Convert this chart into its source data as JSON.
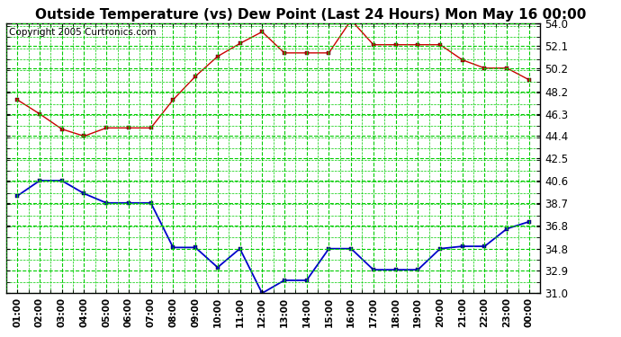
{
  "title": "Outside Temperature (vs) Dew Point (Last 24 Hours) Mon May 16 00:00",
  "copyright": "Copyright 2005 Curtronics.com",
  "x_labels": [
    "01:00",
    "02:00",
    "03:00",
    "04:00",
    "05:00",
    "06:00",
    "07:00",
    "08:00",
    "09:00",
    "10:00",
    "11:00",
    "12:00",
    "13:00",
    "14:00",
    "15:00",
    "16:00",
    "17:00",
    "18:00",
    "19:00",
    "20:00",
    "21:00",
    "22:00",
    "23:00",
    "00:00"
  ],
  "y_ticks": [
    31.0,
    32.9,
    34.8,
    36.8,
    38.7,
    40.6,
    42.5,
    44.4,
    46.3,
    48.2,
    50.2,
    52.1,
    54.0
  ],
  "y_min": 31.0,
  "y_max": 54.0,
  "red_data": [
    47.5,
    46.3,
    45.0,
    44.4,
    45.1,
    45.1,
    45.1,
    47.5,
    49.5,
    51.2,
    52.3,
    53.3,
    51.5,
    51.5,
    51.5,
    54.3,
    52.2,
    52.2,
    52.2,
    52.2,
    50.9,
    50.2,
    50.2,
    49.2
  ],
  "blue_data": [
    39.3,
    40.6,
    40.6,
    39.5,
    38.7,
    38.7,
    38.7,
    34.9,
    34.9,
    33.2,
    34.8,
    31.0,
    32.1,
    32.1,
    34.8,
    34.8,
    33.0,
    33.0,
    33.0,
    34.8,
    35.0,
    35.0,
    36.5,
    37.1
  ],
  "red_color": "#cc0000",
  "blue_color": "#0000cc",
  "bg_color": "#ffffff",
  "plot_bg_color": "#ffffff",
  "grid_color": "#00cc00",
  "title_fontsize": 11,
  "copyright_fontsize": 7.5
}
